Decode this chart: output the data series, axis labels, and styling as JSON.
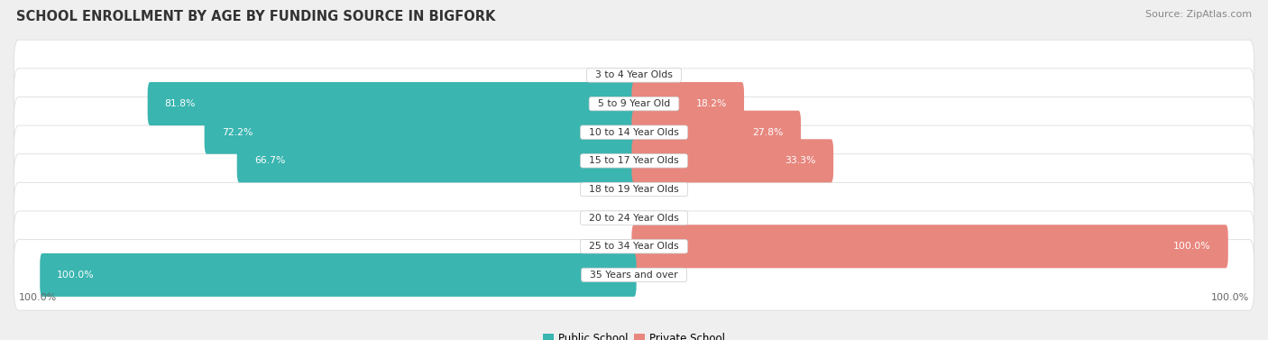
{
  "title": "SCHOOL ENROLLMENT BY AGE BY FUNDING SOURCE IN BIGFORK",
  "source": "Source: ZipAtlas.com",
  "categories": [
    "3 to 4 Year Olds",
    "5 to 9 Year Old",
    "10 to 14 Year Olds",
    "15 to 17 Year Olds",
    "18 to 19 Year Olds",
    "20 to 24 Year Olds",
    "25 to 34 Year Olds",
    "35 Years and over"
  ],
  "public_values": [
    0.0,
    81.8,
    72.2,
    66.7,
    0.0,
    0.0,
    0.0,
    100.0
  ],
  "private_values": [
    0.0,
    18.2,
    27.8,
    33.3,
    0.0,
    0.0,
    100.0,
    0.0
  ],
  "public_color": "#3ab5b0",
  "private_color": "#e8877e",
  "bg_color": "#efefef",
  "row_bg_even": "#f8f8f8",
  "row_bg_odd": "#f0f0f0",
  "axis_label_left": "100.0%",
  "axis_label_right": "100.0%",
  "legend_public": "Public School",
  "legend_private": "Private School",
  "title_fontsize": 10.5,
  "source_fontsize": 8,
  "bar_height": 0.72,
  "max_value": 100.0
}
